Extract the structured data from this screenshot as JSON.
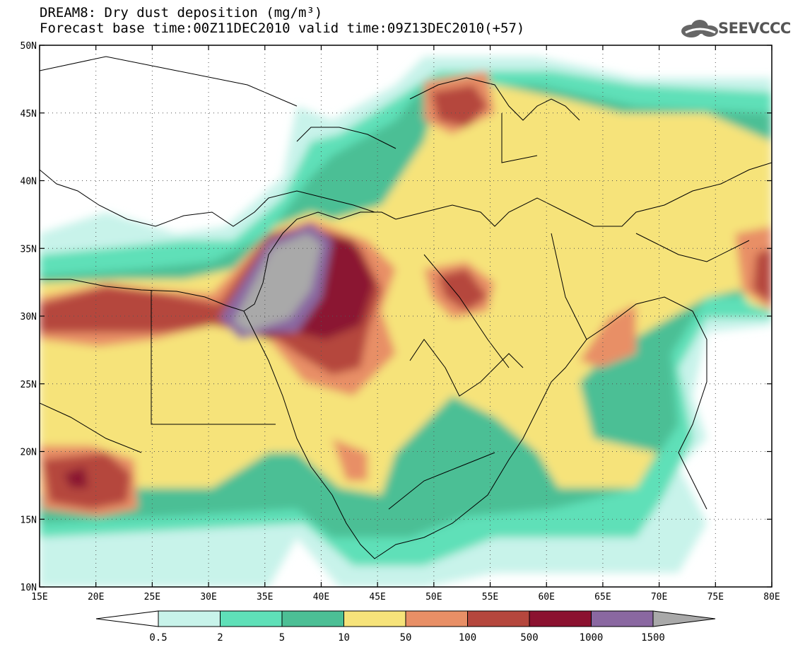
{
  "title": {
    "line1": "DREAM8: Dry dust deposition (mg/m³)",
    "line2": "Forecast base time:00Z11DEC2010 valid time:09Z13DEC2010(+57)"
  },
  "logo": {
    "text": "SEEVCCC",
    "icon": "cloud-logo-icon"
  },
  "map": {
    "lon_range": [
      15,
      80
    ],
    "lat_range": [
      10,
      50
    ],
    "lon_ticks": [
      "15E",
      "20E",
      "25E",
      "30E",
      "35E",
      "40E",
      "45E",
      "50E",
      "55E",
      "60E",
      "65E",
      "70E",
      "75E",
      "80E"
    ],
    "lat_ticks": [
      "10N",
      "15N",
      "20N",
      "25N",
      "30N",
      "35N",
      "40N",
      "45N",
      "50N"
    ],
    "gridlines": "dotted"
  },
  "colorbar": {
    "labels": [
      "0.5",
      "2",
      "5",
      "10",
      "50",
      "100",
      "500",
      "1000",
      "1500"
    ],
    "colors": [
      "#c8f3ea",
      "#5fe0b8",
      "#4cbf95",
      "#f6e37a",
      "#e88f66",
      "#b5473d",
      "#8b1230",
      "#8a68a1",
      "#a9a9a9"
    ],
    "under_color": "#ffffff",
    "over_color": "#a9a9a9"
  }
}
